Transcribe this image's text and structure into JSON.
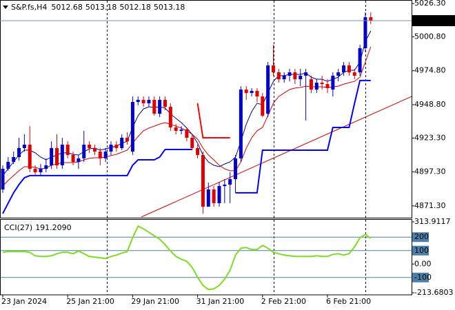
{
  "chart_data": [
    {
      "type": "candlestick",
      "title": "S&P.fs,H4",
      "quote": [
        5012.68,
        5013.18,
        5012.18,
        5013.18
      ],
      "up_color": "#0000cd",
      "down_color": "#e00000",
      "categories": [
        "23 Jan 2024",
        null,
        null,
        null,
        null,
        null,
        null,
        null,
        null,
        null,
        null,
        null,
        "25 Jan 21:00",
        null,
        null,
        null,
        null,
        null,
        null,
        null,
        null,
        null,
        null,
        null,
        "29 Jan 21:00",
        null,
        null,
        null,
        null,
        null,
        null,
        null,
        null,
        null,
        null,
        null,
        "31 Jan 21:00",
        null,
        null,
        null,
        null,
        null,
        null,
        null,
        null,
        null,
        null,
        null,
        "2 Feb 21:00",
        null,
        null,
        null,
        null,
        null,
        null,
        null,
        null,
        null,
        null,
        null,
        "6 Feb 21:00",
        null,
        null,
        null,
        null,
        null,
        null,
        null,
        null
      ],
      "ohlc": [
        [
          4883.9,
          4902.4,
          4881.3,
          4899.7
        ],
        [
          4899.7,
          4908.7,
          4898.2,
          4905.0
        ],
        [
          4905.0,
          4912.9,
          4903.4,
          4908.7
        ],
        [
          4908.7,
          4923.5,
          4906.1,
          4915.6
        ],
        [
          4915.6,
          4926.1,
          4912.9,
          4918.2
        ],
        [
          4918.2,
          4932.4,
          4897.1,
          4899.7
        ],
        [
          4899.7,
          4902.4,
          4894.5,
          4897.1
        ],
        [
          4897.1,
          4903.4,
          4894.5,
          4899.7
        ],
        [
          4899.7,
          4907.7,
          4897.1,
          4902.4
        ],
        [
          4902.4,
          4920.8,
          4899.7,
          4915.6
        ],
        [
          4915.6,
          4926.1,
          4899.7,
          4902.4
        ],
        [
          4902.4,
          4923.5,
          4899.7,
          4918.2
        ],
        [
          4918.2,
          4920.8,
          4907.7,
          4910.3
        ],
        [
          4910.3,
          4912.9,
          4902.4,
          4905.0
        ],
        [
          4905.0,
          4910.3,
          4899.7,
          4907.7
        ],
        [
          4907.7,
          4928.8,
          4905.0,
          4918.2
        ],
        [
          4918.2,
          4920.8,
          4911.9,
          4915.6
        ],
        [
          4915.6,
          4918.2,
          4910.3,
          4912.9
        ],
        [
          4912.9,
          4915.6,
          4902.4,
          4907.7
        ],
        [
          4907.7,
          4915.6,
          4905.0,
          4912.9
        ],
        [
          4912.9,
          4920.8,
          4910.3,
          4918.2
        ],
        [
          4918.2,
          4920.8,
          4912.9,
          4915.6
        ],
        [
          4915.6,
          4926.1,
          4914.0,
          4923.5
        ],
        [
          4923.5,
          4927.7,
          4918.2,
          4920.8
        ],
        [
          4912.9,
          4955.1,
          4910.3,
          4950.9
        ],
        [
          4950.9,
          4955.1,
          4948.3,
          4952.5
        ],
        [
          4952.5,
          4955.1,
          4947.2,
          4949.9
        ],
        [
          4949.9,
          4955.1,
          4947.2,
          4952.5
        ],
        [
          4952.5,
          4955.1,
          4940.4,
          4941.9
        ],
        [
          4941.9,
          4955.1,
          4939.3,
          4952.5
        ],
        [
          4952.5,
          4955.1,
          4944.6,
          4947.2
        ],
        [
          4947.2,
          4949.9,
          4928.8,
          4931.4
        ],
        [
          4931.4,
          4934.0,
          4926.1,
          4928.8
        ],
        [
          4928.8,
          4932.4,
          4926.1,
          4929.8
        ],
        [
          4929.8,
          4931.4,
          4920.8,
          4923.5
        ],
        [
          4923.5,
          4926.1,
          4914.0,
          4915.6
        ],
        [
          4915.6,
          4918.2,
          4907.7,
          4910.3
        ],
        [
          4910.3,
          4912.9,
          4865.4,
          4870.7
        ],
        [
          4870.7,
          4889.2,
          4870.7,
          4883.9
        ],
        [
          4883.9,
          4886.5,
          4870.7,
          4873.4
        ],
        [
          4873.4,
          4889.2,
          4870.7,
          4886.5
        ],
        [
          4886.5,
          4891.8,
          4873.4,
          4887.6
        ],
        [
          4887.6,
          4897.1,
          4873.4,
          4891.8
        ],
        [
          4891.8,
          4910.3,
          4881.3,
          4907.7
        ],
        [
          4907.7,
          4963.0,
          4905.0,
          4960.4
        ],
        [
          4960.4,
          4963.0,
          4952.5,
          4957.8
        ],
        [
          4957.8,
          4961.5,
          4955.1,
          4959.4
        ],
        [
          4959.4,
          4961.5,
          4950.9,
          4955.1
        ],
        [
          4955.1,
          4957.8,
          4939.3,
          4940.4
        ],
        [
          4941.9,
          4981.5,
          4939.3,
          4978.9
        ],
        [
          4978.9,
          4994.7,
          4971.0,
          4973.6
        ],
        [
          4973.6,
          4976.2,
          4965.7,
          4968.3
        ],
        [
          4968.3,
          4973.6,
          4965.7,
          4971.0
        ],
        [
          4971.0,
          4976.2,
          4966.7,
          4973.6
        ],
        [
          4973.6,
          4976.2,
          4964.6,
          4968.3
        ],
        [
          4968.3,
          4976.2,
          4963.0,
          4971.0
        ],
        [
          4971.0,
          4976.2,
          4936.7,
          4973.6
        ],
        [
          4968.3,
          4971.0,
          4957.8,
          4960.4
        ],
        [
          4960.4,
          4968.3,
          4957.8,
          4965.7
        ],
        [
          4965.7,
          4971.0,
          4960.4,
          4964.6
        ],
        [
          4964.6,
          4968.3,
          4957.8,
          4961.5
        ],
        [
          4960.4,
          4973.6,
          4955.1,
          4971.0
        ],
        [
          4971.0,
          4976.2,
          4966.7,
          4973.6
        ],
        [
          4973.6,
          4981.5,
          4971.0,
          4978.9
        ],
        [
          4978.9,
          4981.5,
          4971.0,
          4973.6
        ],
        [
          4973.6,
          4976.2,
          4968.3,
          4971.0
        ],
        [
          4973.6,
          4994.7,
          4971.0,
          4992.1
        ],
        [
          4992.1,
          5019.5,
          4989.4,
          5015.8
        ],
        [
          5015.8,
          5019.5,
          5010.5,
          5013.18
        ]
      ],
      "series": [
        {
          "color": "#00008b",
          "width": 1,
          "values": [
            4894.5,
            4899.7,
            4905.0,
            4910.3,
            4914.0,
            4914.0,
            4911.9,
            4908.7,
            4906.6,
            4908.7,
            4910.3,
            4911.9,
            4911.9,
            4910.8,
            4910.3,
            4912.9,
            4915.0,
            4915.6,
            4914.0,
            4915.0,
            4916.1,
            4917.1,
            4919.3,
            4920.8,
            4931.4,
            4940.4,
            4945.6,
            4947.2,
            4946.7,
            4947.2,
            4946.2,
            4941.9,
            4938.3,
            4935.1,
            4930.9,
            4926.1,
            4919.3,
            4910.3,
            4905.0,
            4902.4,
            4901.3,
            4903.4,
            4905.0,
            4908.7,
            4920.8,
            4934.0,
            4943.5,
            4949.9,
            4948.8,
            4957.8,
            4966.7,
            4971.0,
            4971.0,
            4972.0,
            4972.0,
            4972.0,
            4973.1,
            4969.9,
            4968.3,
            4968.3,
            4966.7,
            4968.3,
            4969.9,
            4973.6,
            4975.2,
            4975.2,
            4981.5,
            4997.3,
            5005.3
          ]
        },
        {
          "color": "#d00000",
          "width": 1,
          "values": [
            4886.5,
            4890.8,
            4894.5,
            4898.2,
            4901.3,
            4901.3,
            4900.8,
            4899.7,
            4900.3,
            4902.4,
            4903.4,
            4904.5,
            4904.5,
            4904.5,
            4905.0,
            4906.6,
            4907.7,
            4908.2,
            4908.2,
            4908.7,
            4909.8,
            4910.8,
            4912.4,
            4914.0,
            4919.3,
            4924.5,
            4928.8,
            4930.9,
            4932.4,
            4934.0,
            4935.1,
            4934.0,
            4932.4,
            4930.9,
            4928.8,
            4926.1,
            4922.4,
            4915.6,
            4910.3,
            4906.6,
            4902.4,
            4899.7,
            4898.2,
            4898.2,
            4905.0,
            4915.6,
            4923.5,
            4928.8,
            4931.4,
            4940.4,
            4949.9,
            4955.1,
            4957.8,
            4960.4,
            4961.5,
            4962.0,
            4963.0,
            4962.5,
            4962.5,
            4962.5,
            4962.0,
            4962.5,
            4963.0,
            4964.6,
            4965.7,
            4966.7,
            4969.9,
            4981.5,
            4993.1
          ]
        },
        {
          "color": "#0000ff",
          "width": 2,
          "values": [
            4865.4,
            4873.4,
            4881.3,
            4887.6,
            4892.9,
            4894.5,
            4894.5,
            4894.5,
            4894.5,
            4894.5,
            4894.5,
            4894.5,
            4894.5,
            4894.5,
            4894.5,
            4894.5,
            4894.5,
            4894.5,
            4894.5,
            4894.5,
            4894.5,
            4894.5,
            4894.5,
            4894.5,
            4902.4,
            4906.6,
            4906.6,
            4906.6,
            4906.6,
            4908.7,
            4914.5,
            4914.5,
            4914.5,
            4914.5,
            4914.5,
            4914.5,
            null,
            null,
            null,
            null,
            null,
            null,
            null,
            4881.3,
            4881.3,
            4881.3,
            4881.3,
            4881.3,
            4914.0,
            4914.0,
            4914.0,
            4914.0,
            4914.0,
            4914.0,
            4914.0,
            4914.0,
            4914.0,
            4914.0,
            4914.0,
            4914.0,
            4914.0,
            4931.4,
            4931.4,
            4931.4,
            4931.4,
            4949.9,
            4967.3,
            4967.3,
            4967.3
          ]
        },
        {
          "color": "#ff0000",
          "width": 2,
          "values": [
            null,
            null,
            null,
            null,
            null,
            null,
            null,
            null,
            null,
            null,
            null,
            null,
            null,
            null,
            null,
            null,
            null,
            null,
            null,
            null,
            null,
            null,
            null,
            null,
            null,
            null,
            null,
            null,
            null,
            null,
            null,
            null,
            null,
            null,
            null,
            null,
            4949.9,
            4923.5,
            4923.5,
            4923.5,
            4923.5,
            4923.5,
            4923.5,
            null,
            null,
            null,
            null,
            null,
            null,
            null,
            null,
            null,
            null,
            null,
            null,
            null,
            null,
            null,
            null,
            null,
            null,
            null,
            null,
            null,
            null,
            null,
            null,
            null,
            null
          ]
        }
      ],
      "trendline": {
        "color": "#cc0000",
        "values": [
          4862.8,
          4955.1
        ]
      },
      "ylim": [
        4862.8,
        5029.0
      ],
      "yticks": [
        {
          "value": 5026.3,
          "label": "5026.30"
        },
        {
          "value": 5000.8,
          "label": "5000.80"
        },
        {
          "value": 4974.8,
          "label": "4974.80"
        },
        {
          "value": 4948.8,
          "label": "4948.80"
        },
        {
          "value": 4923.3,
          "label": "4923.30"
        },
        {
          "value": 4897.3,
          "label": "4897.30"
        },
        {
          "value": 4871.3,
          "label": "4871.30"
        }
      ]
    },
    {
      "type": "line",
      "title": "CCI(27)",
      "color": "#7ddc1f",
      "values": [
        87.2,
        92.3,
        92.3,
        92.3,
        92.3,
        87.2,
        61.5,
        56.4,
        56.4,
        61.5,
        76.9,
        87.2,
        87.2,
        76.9,
        97.4,
        76.9,
        56.4,
        51.3,
        46.2,
        41.0,
        56.4,
        66.7,
        82.1,
        92.3,
        194.9,
        282.1,
        261.5,
        235.9,
        210.2,
        184.6,
        143.6,
        97.4,
        56.4,
        35.9,
        20.5,
        -25.6,
        -97.4,
        -159.0,
        -189.7,
        -184.6,
        -159.0,
        -112.8,
        -46.2,
        66.7,
        117.9,
        123.1,
        107.7,
        107.7,
        138.5,
        117.9,
        87.2,
        76.9,
        66.7,
        61.5,
        56.4,
        56.4,
        56.4,
        56.4,
        61.5,
        56.4,
        56.4,
        71.8,
        76.9,
        66.7,
        76.9,
        128.2,
        194.9,
        220.5,
        191.209
      ],
      "value_labels": [
        null,
        null,
        null,
        null,
        null,
        null,
        null,
        null,
        null,
        null,
        null,
        null,
        null,
        null,
        null,
        null,
        null,
        null,
        null,
        null,
        null,
        null,
        null,
        null,
        null,
        null,
        null,
        null,
        null,
        null,
        null,
        null,
        null,
        null,
        null,
        null,
        null,
        null,
        null,
        null,
        null,
        null,
        null,
        null,
        null,
        null,
        null,
        null,
        null,
        null,
        null,
        null,
        null,
        null,
        null,
        null,
        null,
        null,
        null,
        null,
        null,
        null,
        null,
        null,
        null,
        null,
        null,
        null,
        "191.2090"
      ],
      "levels": [
        200,
        100,
        -100
      ],
      "level_color": "#4a7fa8",
      "ylim": [
        -213.6803,
        313.9117
      ],
      "yticks": [
        313.9117,
        200,
        100,
        {
          "value": 0,
          "label": "0.00"
        },
        -100,
        -213.6803
      ]
    }
  ]
}
